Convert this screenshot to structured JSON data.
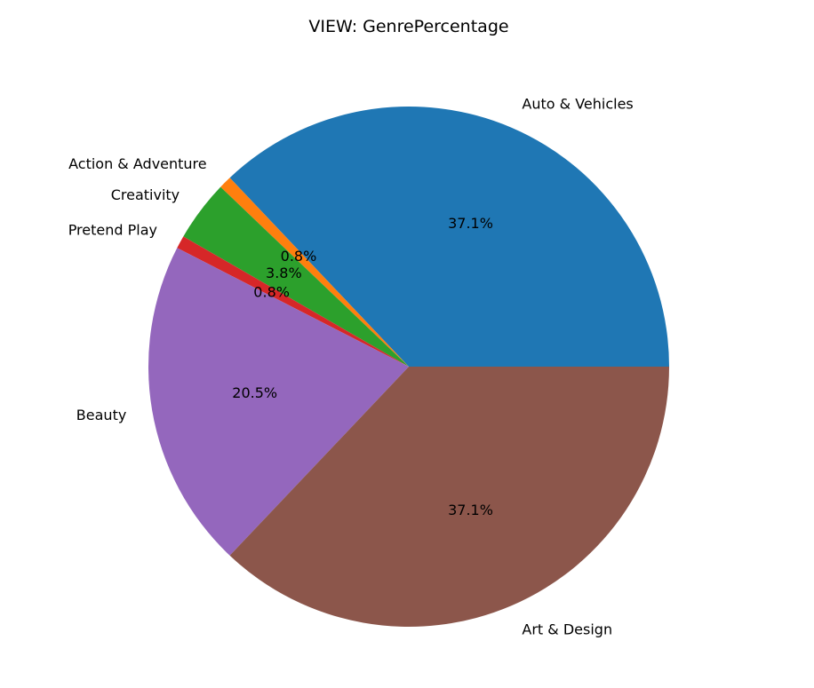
{
  "chart_data": {
    "type": "pie",
    "title": "VIEW: GenrePercentage",
    "start_angle_deg": 0,
    "direction": "counterclockwise",
    "slices": [
      {
        "label": "Auto & Vehicles",
        "value": 37.1,
        "pct_text": "37.1%",
        "color": "#1f77b4"
      },
      {
        "label": "Action & Adventure",
        "value": 0.8,
        "pct_text": "0.8%",
        "color": "#ff7f0e"
      },
      {
        "label": "Creativity",
        "value": 3.8,
        "pct_text": "3.8%",
        "color": "#2ca02c"
      },
      {
        "label": "Pretend Play",
        "value": 0.8,
        "pct_text": "0.8%",
        "color": "#d62728"
      },
      {
        "label": "Beauty",
        "value": 20.5,
        "pct_text": "20.5%",
        "color": "#9467bd"
      },
      {
        "label": "Art & Design",
        "value": 37.1,
        "pct_text": "37.1%",
        "color": "#8c564b"
      }
    ]
  }
}
